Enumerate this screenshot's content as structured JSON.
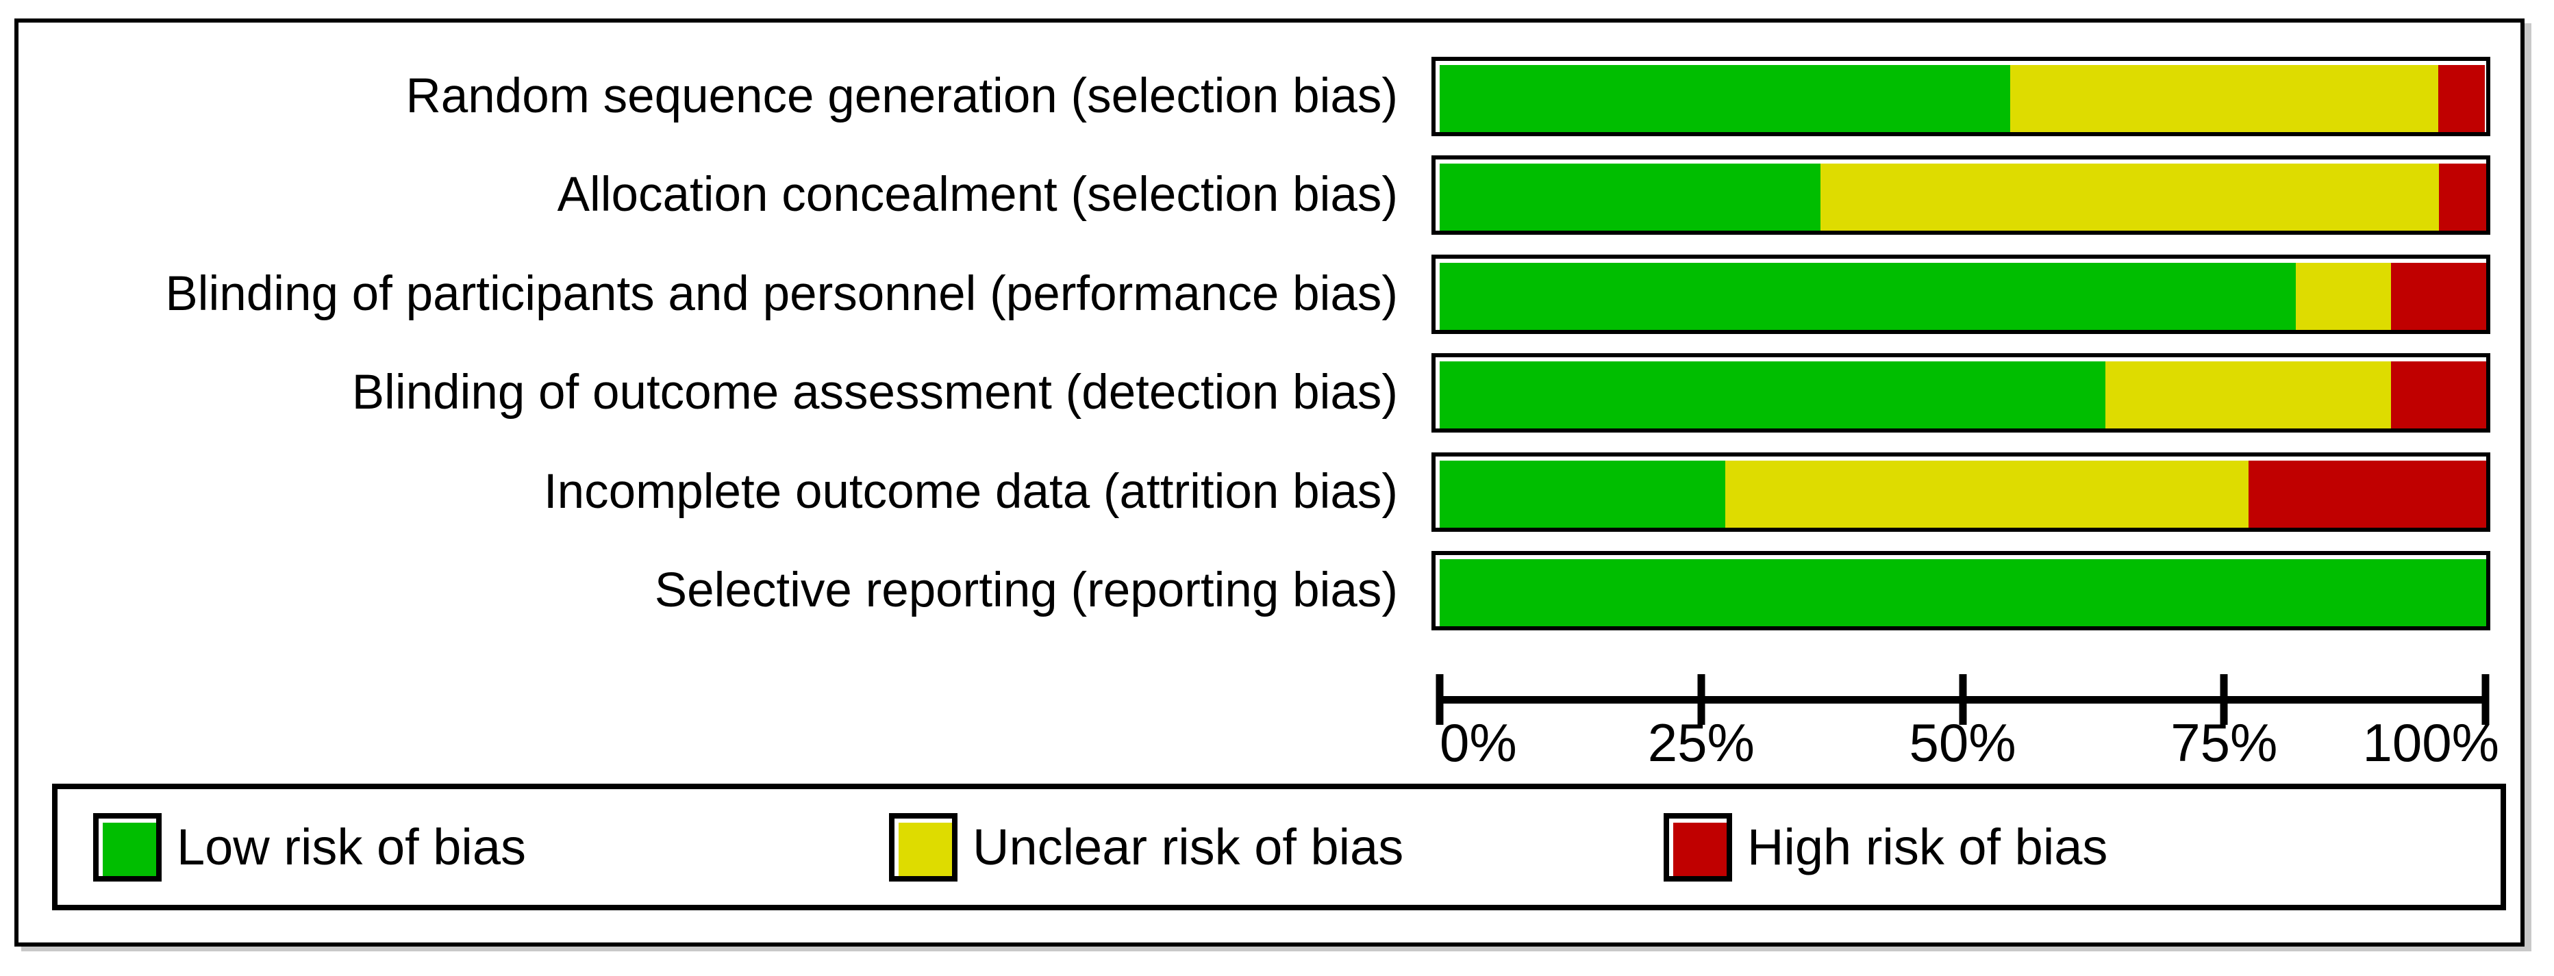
{
  "chart_data": {
    "type": "bar",
    "stacked": true,
    "orientation": "horizontal",
    "title": "",
    "categories": [
      "Random sequence generation (selection bias)",
      "Allocation concealment (selection bias)",
      "Blinding of participants and personnel (performance bias)",
      "Blinding of outcome assessment (detection bias)",
      "Incomplete outcome data (attrition bias)",
      "Selective reporting (reporting bias)"
    ],
    "series": [
      {
        "name": "Low risk of bias",
        "color": "#00be00",
        "values_pct": [
          54.5,
          36.4,
          81.8,
          63.6,
          27.3,
          100
        ]
      },
      {
        "name": "Unclear risk of bias",
        "color": "#dedc00",
        "values_pct": [
          40.9,
          59.1,
          9.1,
          27.3,
          50.0,
          0
        ]
      },
      {
        "name": "High risk of bias",
        "color": "#c00000",
        "values_pct": [
          4.5,
          4.5,
          9.1,
          9.1,
          22.7,
          0
        ]
      }
    ],
    "x_axis": {
      "min": 0,
      "max": 100,
      "ticks": [
        {
          "label": "0%",
          "value": 0
        },
        {
          "label": "25%",
          "value": 25
        },
        {
          "label": "50%",
          "value": 50
        },
        {
          "label": "75%",
          "value": 75
        },
        {
          "label": "100%",
          "value": 100
        }
      ]
    },
    "grid": false,
    "legend_position": "bottom"
  },
  "legend": {
    "items": [
      {
        "label": "Low risk of bias",
        "color": "#00be00"
      },
      {
        "label": "Unclear risk of bias",
        "color": "#dedc00"
      },
      {
        "label": "High risk of bias",
        "color": "#c00000"
      }
    ]
  }
}
